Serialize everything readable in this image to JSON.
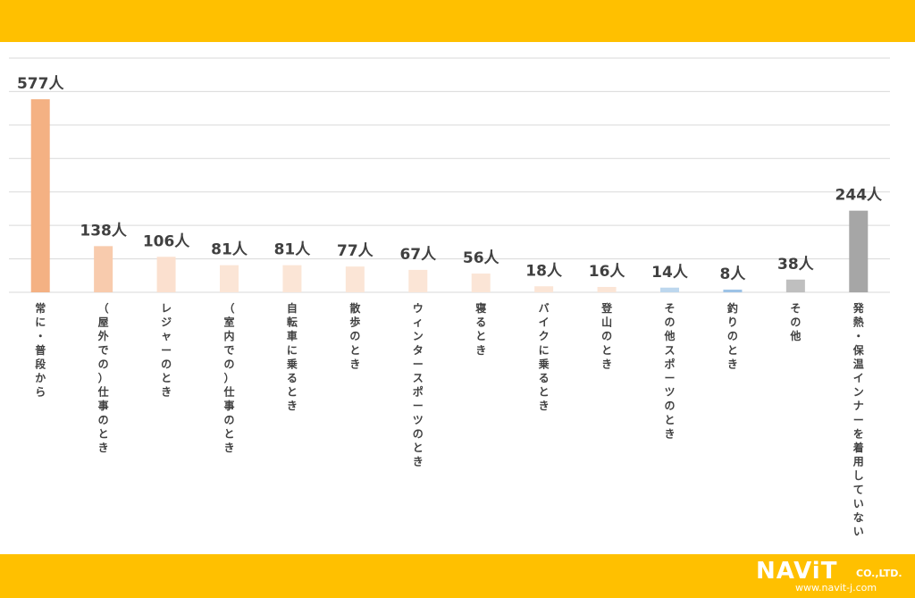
{
  "colors": {
    "band": "#FFC000",
    "grid": "#D9D9D9",
    "text": "#404040"
  },
  "chart_data": {
    "type": "bar",
    "unit": "人",
    "categories": [
      "常に・普段から",
      "（屋外での）仕事のとき",
      "レジャーのとき",
      "（室内での）仕事のとき",
      "自転車に乗るとき",
      "散歩のとき",
      "ウィンタースポーツのとき",
      "寝るとき",
      "バイクに乗るとき",
      "登山のとき",
      "その他スポーツのとき",
      "釣りのとき",
      "その他",
      "発熱・保温インナーを着用していない"
    ],
    "values": [
      577,
      138,
      106,
      81,
      81,
      77,
      67,
      56,
      18,
      16,
      14,
      8,
      38,
      244
    ],
    "value_labels": [
      "577人",
      "138人",
      "106人",
      "81人",
      "81人",
      "77人",
      "67人",
      "56人",
      "18人",
      "16人",
      "14人",
      "8人",
      "38人",
      "244人"
    ],
    "bar_colors": [
      "#F4B183",
      "#F8CBAD",
      "#FBE0CF",
      "#FBE5D6",
      "#FBE5D6",
      "#FBE5D6",
      "#FBE5D6",
      "#FBE5D6",
      "#FBE5D6",
      "#FBE5D6",
      "#BDD7EE",
      "#9DC3E6",
      "#BFBFBF",
      "#A6A6A6"
    ],
    "ylim": [
      0,
      700
    ],
    "grid": true
  },
  "logo": {
    "name": "NAViT",
    "suffix": "CO.,LTD.",
    "url": "www.navit-j.com"
  }
}
